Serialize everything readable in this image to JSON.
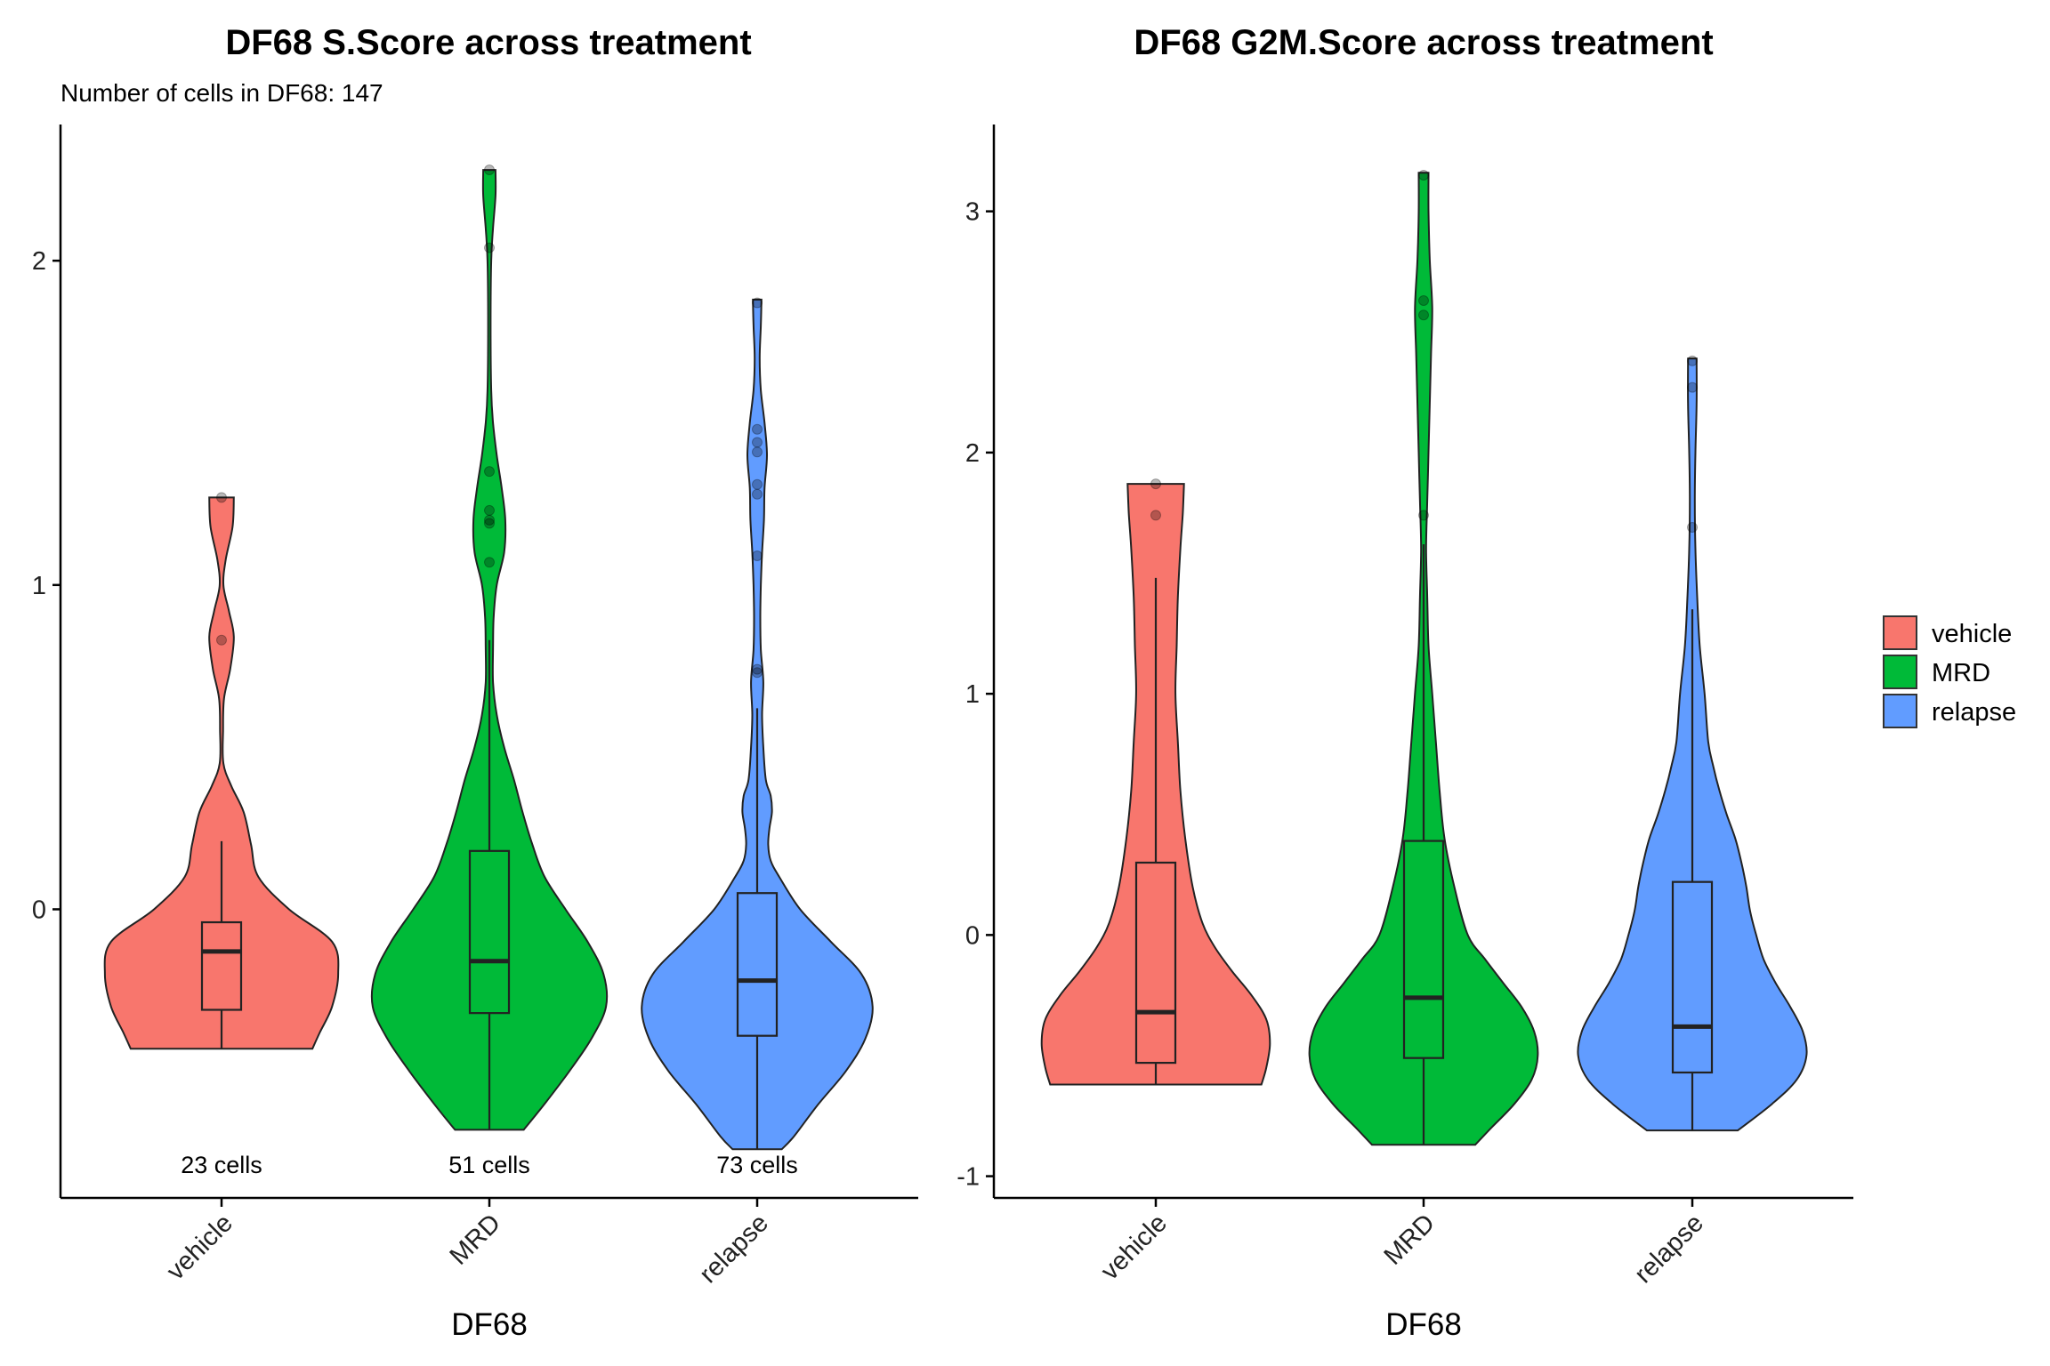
{
  "legend": [
    {
      "label": "vehicle",
      "color": "#F8766D"
    },
    {
      "label": "MRD",
      "color": "#00BA38"
    },
    {
      "label": "relapse",
      "color": "#619CFF"
    }
  ],
  "chart_data": [
    {
      "type": "violin",
      "title": "DF68 S.Score across treatment",
      "subtitle": "Number of cells in DF68: 147",
      "xlabel": "DF68",
      "ylabel": "",
      "ylim": [
        -0.89,
        2.42
      ],
      "yticks": [
        0,
        1,
        2
      ],
      "categories": [
        "vehicle",
        "MRD",
        "relapse"
      ],
      "count_labels": [
        "23 cells",
        "51 cells",
        "73 cells"
      ],
      "series": [
        {
          "category": "vehicle",
          "color": "#F8766D",
          "min": -0.43,
          "max": 1.27,
          "box": {
            "q1": -0.31,
            "median": -0.13,
            "q3": -0.04,
            "whisker_low": -0.43,
            "whisker_high": 0.21
          },
          "density": [
            [
              -0.43,
              0.74
            ],
            [
              -0.38,
              0.8
            ],
            [
              -0.3,
              0.9
            ],
            [
              -0.2,
              0.95
            ],
            [
              -0.1,
              0.9
            ],
            [
              0.0,
              0.55
            ],
            [
              0.1,
              0.3
            ],
            [
              0.2,
              0.24
            ],
            [
              0.3,
              0.18
            ],
            [
              0.38,
              0.08
            ],
            [
              0.45,
              0.015
            ],
            [
              0.55,
              0.012
            ],
            [
              0.65,
              0.02
            ],
            [
              0.74,
              0.07
            ],
            [
              0.84,
              0.1
            ],
            [
              0.92,
              0.06
            ],
            [
              1.0,
              0.015
            ],
            [
              1.08,
              0.035
            ],
            [
              1.18,
              0.09
            ],
            [
              1.27,
              0.1
            ]
          ],
          "points": [
            1.27,
            0.83
          ]
        },
        {
          "category": "MRD",
          "color": "#00BA38",
          "min": -0.68,
          "max": 2.28,
          "box": {
            "q1": -0.32,
            "median": -0.16,
            "q3": 0.18,
            "whisker_low": -0.68,
            "whisker_high": 0.83
          },
          "density": [
            [
              -0.68,
              0.28
            ],
            [
              -0.6,
              0.45
            ],
            [
              -0.5,
              0.65
            ],
            [
              -0.4,
              0.83
            ],
            [
              -0.3,
              0.95
            ],
            [
              -0.2,
              0.93
            ],
            [
              -0.1,
              0.8
            ],
            [
              0.0,
              0.62
            ],
            [
              0.1,
              0.45
            ],
            [
              0.2,
              0.35
            ],
            [
              0.3,
              0.27
            ],
            [
              0.4,
              0.2
            ],
            [
              0.5,
              0.12
            ],
            [
              0.6,
              0.06
            ],
            [
              0.7,
              0.03
            ],
            [
              0.8,
              0.03
            ],
            [
              0.9,
              0.035
            ],
            [
              1.0,
              0.06
            ],
            [
              1.1,
              0.12
            ],
            [
              1.2,
              0.13
            ],
            [
              1.3,
              0.1
            ],
            [
              1.4,
              0.06
            ],
            [
              1.5,
              0.03
            ],
            [
              1.6,
              0.015
            ],
            [
              1.8,
              0.01
            ],
            [
              2.0,
              0.015
            ],
            [
              2.1,
              0.03
            ],
            [
              2.2,
              0.05
            ],
            [
              2.28,
              0.05
            ]
          ],
          "points": [
            2.28,
            2.04,
            1.35,
            1.23,
            1.2,
            1.19,
            1.07
          ]
        },
        {
          "category": "relapse",
          "color": "#619CFF",
          "min": -0.74,
          "max": 1.88,
          "box": {
            "q1": -0.39,
            "median": -0.22,
            "q3": 0.05,
            "whisker_low": -0.74,
            "whisker_high": 0.62
          },
          "density": [
            [
              -0.74,
              0.2
            ],
            [
              -0.7,
              0.3
            ],
            [
              -0.6,
              0.5
            ],
            [
              -0.5,
              0.72
            ],
            [
              -0.4,
              0.88
            ],
            [
              -0.3,
              0.94
            ],
            [
              -0.2,
              0.85
            ],
            [
              -0.1,
              0.6
            ],
            [
              0.0,
              0.35
            ],
            [
              0.1,
              0.18
            ],
            [
              0.15,
              0.11
            ],
            [
              0.2,
              0.09
            ],
            [
              0.25,
              0.1
            ],
            [
              0.3,
              0.12
            ],
            [
              0.35,
              0.11
            ],
            [
              0.4,
              0.07
            ],
            [
              0.5,
              0.05
            ],
            [
              0.6,
              0.04
            ],
            [
              0.7,
              0.05
            ],
            [
              0.8,
              0.03
            ],
            [
              0.9,
              0.025
            ],
            [
              1.0,
              0.03
            ],
            [
              1.1,
              0.04
            ],
            [
              1.2,
              0.055
            ],
            [
              1.3,
              0.06
            ],
            [
              1.4,
              0.08
            ],
            [
              1.5,
              0.06
            ],
            [
              1.6,
              0.03
            ],
            [
              1.7,
              0.02
            ],
            [
              1.8,
              0.03
            ],
            [
              1.88,
              0.035
            ]
          ],
          "points": [
            1.87,
            1.48,
            1.44,
            1.41,
            1.31,
            1.28,
            1.09,
            0.74,
            0.73
          ]
        }
      ]
    },
    {
      "type": "violin",
      "title": "DF68 G2M.Score across treatment",
      "subtitle": "",
      "xlabel": "DF68",
      "ylabel": "",
      "ylim": [
        -1.09,
        3.36
      ],
      "yticks": [
        -1,
        0,
        1,
        2,
        3
      ],
      "categories": [
        "vehicle",
        "MRD",
        "relapse"
      ],
      "count_labels": [],
      "series": [
        {
          "category": "vehicle",
          "color": "#F8766D",
          "min": -0.62,
          "max": 1.87,
          "box": {
            "q1": -0.53,
            "median": -0.32,
            "q3": 0.3,
            "whisker_low": -0.62,
            "whisker_high": 1.48
          },
          "density": [
            [
              -0.62,
              0.86
            ],
            [
              -0.55,
              0.9
            ],
            [
              -0.45,
              0.93
            ],
            [
              -0.35,
              0.9
            ],
            [
              -0.25,
              0.78
            ],
            [
              -0.15,
              0.62
            ],
            [
              -0.05,
              0.48
            ],
            [
              0.05,
              0.38
            ],
            [
              0.2,
              0.3
            ],
            [
              0.4,
              0.24
            ],
            [
              0.6,
              0.2
            ],
            [
              0.8,
              0.18
            ],
            [
              1.0,
              0.16
            ],
            [
              1.2,
              0.17
            ],
            [
              1.4,
              0.18
            ],
            [
              1.6,
              0.2
            ],
            [
              1.75,
              0.22
            ],
            [
              1.87,
              0.23
            ]
          ],
          "points": [
            1.87,
            1.74
          ]
        },
        {
          "category": "MRD",
          "color": "#00BA38",
          "min": -0.87,
          "max": 3.16,
          "box": {
            "q1": -0.51,
            "median": -0.26,
            "q3": 0.39,
            "whisker_low": -0.87,
            "whisker_high": 1.62
          },
          "density": [
            [
              -0.87,
              0.42
            ],
            [
              -0.8,
              0.55
            ],
            [
              -0.7,
              0.74
            ],
            [
              -0.6,
              0.88
            ],
            [
              -0.5,
              0.93
            ],
            [
              -0.4,
              0.9
            ],
            [
              -0.3,
              0.8
            ],
            [
              -0.2,
              0.65
            ],
            [
              -0.1,
              0.5
            ],
            [
              0.0,
              0.36
            ],
            [
              0.2,
              0.25
            ],
            [
              0.4,
              0.17
            ],
            [
              0.6,
              0.13
            ],
            [
              0.8,
              0.1
            ],
            [
              1.0,
              0.07
            ],
            [
              1.2,
              0.04
            ],
            [
              1.4,
              0.03
            ],
            [
              1.6,
              0.02
            ],
            [
              1.8,
              0.03
            ],
            [
              2.0,
              0.04
            ],
            [
              2.2,
              0.05
            ],
            [
              2.4,
              0.06
            ],
            [
              2.6,
              0.07
            ],
            [
              2.8,
              0.05
            ],
            [
              3.0,
              0.04
            ],
            [
              3.16,
              0.04
            ]
          ],
          "points": [
            3.15,
            2.63,
            2.57,
            1.74
          ]
        },
        {
          "category": "relapse",
          "color": "#619CFF",
          "min": -0.81,
          "max": 2.39,
          "box": {
            "q1": -0.57,
            "median": -0.38,
            "q3": 0.22,
            "whisker_low": -0.81,
            "whisker_high": 1.35
          },
          "density": [
            [
              -0.81,
              0.37
            ],
            [
              -0.7,
              0.65
            ],
            [
              -0.6,
              0.85
            ],
            [
              -0.5,
              0.93
            ],
            [
              -0.4,
              0.9
            ],
            [
              -0.3,
              0.8
            ],
            [
              -0.2,
              0.68
            ],
            [
              -0.1,
              0.58
            ],
            [
              0.0,
              0.52
            ],
            [
              0.1,
              0.47
            ],
            [
              0.2,
              0.44
            ],
            [
              0.3,
              0.4
            ],
            [
              0.4,
              0.35
            ],
            [
              0.5,
              0.28
            ],
            [
              0.6,
              0.22
            ],
            [
              0.7,
              0.17
            ],
            [
              0.8,
              0.13
            ],
            [
              1.0,
              0.1
            ],
            [
              1.2,
              0.06
            ],
            [
              1.4,
              0.04
            ],
            [
              1.6,
              0.025
            ],
            [
              1.8,
              0.02
            ],
            [
              2.0,
              0.025
            ],
            [
              2.2,
              0.035
            ],
            [
              2.39,
              0.035
            ]
          ],
          "points": [
            2.38,
            2.27,
            1.69
          ]
        }
      ]
    }
  ]
}
